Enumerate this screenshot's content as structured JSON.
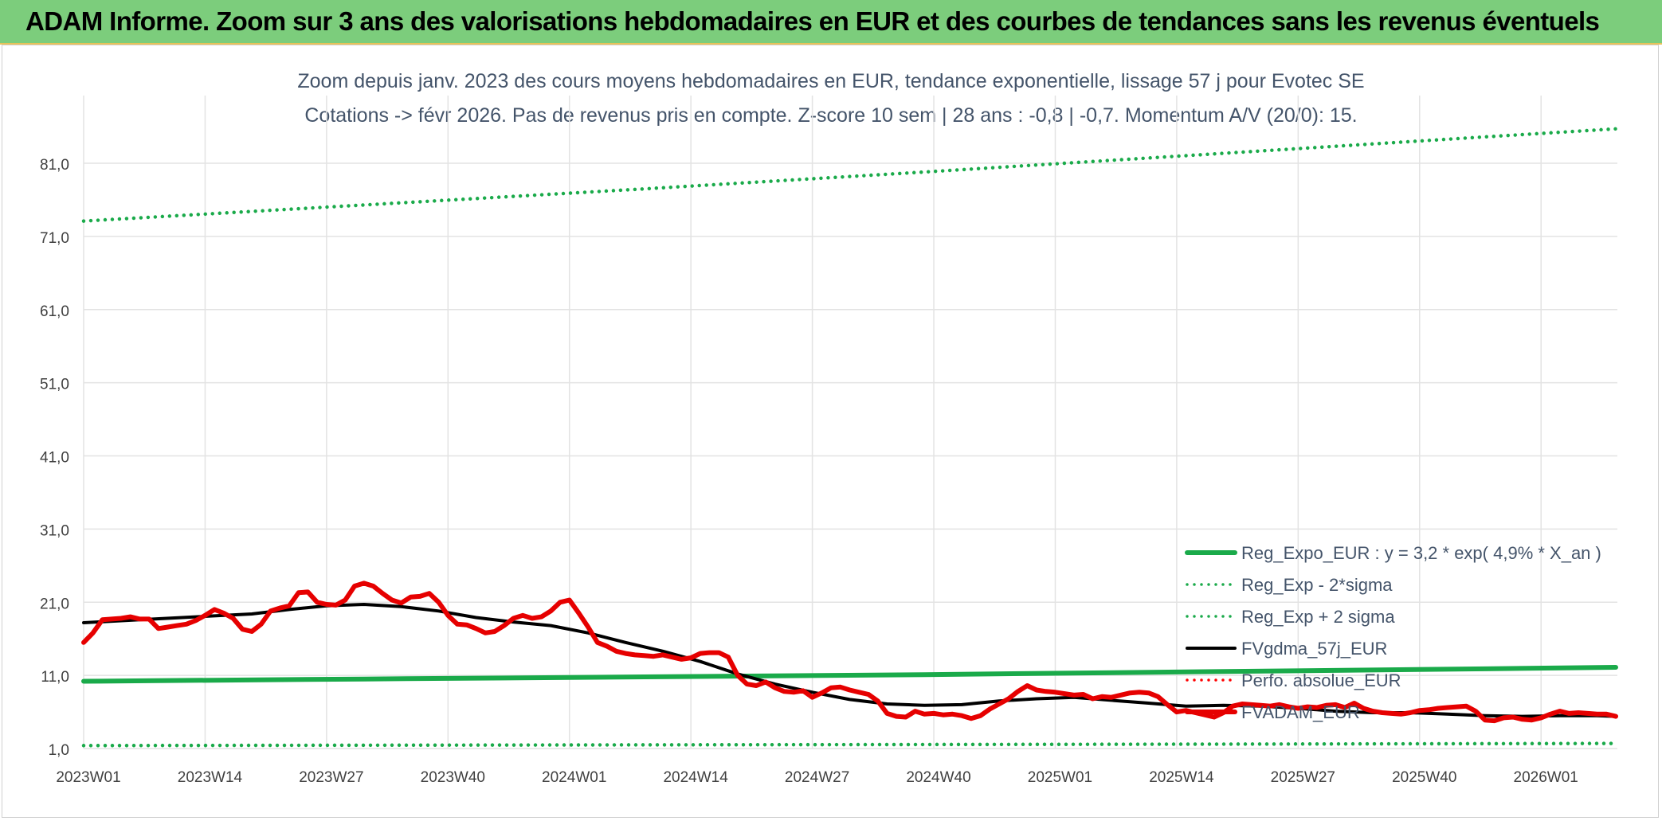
{
  "banner": {
    "title": "ADAM Informe. Zoom sur 3 ans des valorisations hebdomadaires en EUR et des courbes de tendances sans les revenus éventuels"
  },
  "chart_data": {
    "type": "line",
    "title": "Zoom depuis janv. 2023 des cours moyens hebdomadaires en EUR, tendance exponentielle, lissage 57 j pour Evotec SE",
    "subtitle": "Cotations -> févr 2026. Pas de revenus pris en compte. Z-score 10 sem | 28 ans : -0,8 | -0,7. Momentum A/V (20/0): 15.",
    "xlabel": "",
    "ylabel": "",
    "ylim": [
      1,
      88
    ],
    "y_ticks": [
      1,
      11,
      21,
      31,
      41,
      51,
      61,
      71,
      81
    ],
    "y_tick_labels": [
      "1,0",
      "11,0",
      "21,0",
      "31,0",
      "41,0",
      "51,0",
      "61,0",
      "71,0",
      "81,0"
    ],
    "x_tick_labels": [
      "2023W01",
      "2023W14",
      "2023W27",
      "2023W40",
      "2024W01",
      "2024W14",
      "2024W27",
      "2024W40",
      "2025W01",
      "2025W14",
      "2025W27",
      "2025W40",
      "2026W01"
    ],
    "x_tick_weeks": [
      0,
      13,
      26,
      39,
      52,
      65,
      78,
      91,
      104,
      117,
      130,
      143,
      156
    ],
    "x_max_week": 164,
    "legend_position": "bottom-right",
    "series": [
      {
        "name": "Reg_Expo_EUR : y = 3,2 * exp( 4,9% *  X_an )",
        "color": "#1aaa4a",
        "style": "solid-thick",
        "points": [
          [
            0,
            10.2
          ],
          [
            30,
            10.5
          ],
          [
            60,
            10.8
          ],
          [
            90,
            11.1
          ],
          [
            120,
            11.5
          ],
          [
            150,
            11.9
          ],
          [
            164,
            12.1
          ]
        ]
      },
      {
        "name": "Reg_Exp - 2*sigma",
        "color": "#1aaa4a",
        "style": "dotted",
        "points": [
          [
            0,
            1.4
          ],
          [
            60,
            1.5
          ],
          [
            120,
            1.6
          ],
          [
            164,
            1.7
          ]
        ]
      },
      {
        "name": "Reg_Exp + 2 sigma",
        "color": "#1aaa4a",
        "style": "dotted",
        "points": [
          [
            0,
            73.1
          ],
          [
            30,
            75.3
          ],
          [
            60,
            77.5
          ],
          [
            90,
            79.8
          ],
          [
            120,
            82.2
          ],
          [
            150,
            84.6
          ],
          [
            164,
            85.7
          ]
        ]
      },
      {
        "name": "FVgdma_57j_EUR",
        "color": "#000000",
        "style": "solid",
        "points": [
          [
            0,
            18.2
          ],
          [
            6,
            18.6
          ],
          [
            12,
            19.0
          ],
          [
            18,
            19.4
          ],
          [
            22,
            20.0
          ],
          [
            26,
            20.5
          ],
          [
            30,
            20.7
          ],
          [
            34,
            20.4
          ],
          [
            38,
            19.8
          ],
          [
            42,
            18.9
          ],
          [
            46,
            18.3
          ],
          [
            50,
            17.8
          ],
          [
            54,
            16.8
          ],
          [
            58,
            15.5
          ],
          [
            62,
            14.3
          ],
          [
            66,
            12.9
          ],
          [
            70,
            11.2
          ],
          [
            74,
            9.8
          ],
          [
            78,
            8.7
          ],
          [
            82,
            7.7
          ],
          [
            86,
            7.1
          ],
          [
            90,
            6.9
          ],
          [
            94,
            7.0
          ],
          [
            98,
            7.5
          ],
          [
            102,
            7.8
          ],
          [
            106,
            8.0
          ],
          [
            110,
            7.6
          ],
          [
            114,
            7.2
          ],
          [
            118,
            6.8
          ],
          [
            122,
            6.9
          ],
          [
            126,
            6.8
          ],
          [
            130,
            6.5
          ],
          [
            134,
            6.1
          ],
          [
            138,
            5.9
          ],
          [
            142,
            5.9
          ],
          [
            146,
            5.7
          ],
          [
            150,
            5.5
          ],
          [
            154,
            5.4
          ],
          [
            158,
            5.5
          ],
          [
            162,
            5.5
          ],
          [
            164,
            5.4
          ]
        ]
      },
      {
        "name": "Perfo. absolue_EUR",
        "color": "#ff0000",
        "style": "dotted",
        "points": []
      },
      {
        "name": "FVADAM_EUR",
        "color": "#e60000",
        "style": "solid-thick",
        "points": [
          [
            0,
            15.5
          ],
          [
            1,
            16.8
          ],
          [
            2,
            18.6
          ],
          [
            3,
            18.7
          ],
          [
            4,
            18.8
          ],
          [
            5,
            19.0
          ],
          [
            6,
            18.7
          ],
          [
            7,
            18.7
          ],
          [
            8,
            17.4
          ],
          [
            9,
            17.6
          ],
          [
            10,
            17.8
          ],
          [
            11,
            18.0
          ],
          [
            12,
            18.5
          ],
          [
            13,
            19.2
          ],
          [
            14,
            20.0
          ],
          [
            15,
            19.5
          ],
          [
            16,
            18.8
          ],
          [
            17,
            17.3
          ],
          [
            18,
            17.0
          ],
          [
            19,
            18.0
          ],
          [
            20,
            19.8
          ],
          [
            21,
            20.2
          ],
          [
            22,
            20.5
          ],
          [
            23,
            22.3
          ],
          [
            24,
            22.4
          ],
          [
            25,
            21.0
          ],
          [
            26,
            20.7
          ],
          [
            27,
            20.6
          ],
          [
            28,
            21.3
          ],
          [
            29,
            23.2
          ],
          [
            30,
            23.6
          ],
          [
            31,
            23.2
          ],
          [
            32,
            22.2
          ],
          [
            33,
            21.3
          ],
          [
            34,
            20.9
          ],
          [
            35,
            21.7
          ],
          [
            36,
            21.8
          ],
          [
            37,
            22.2
          ],
          [
            38,
            21.0
          ],
          [
            39,
            19.2
          ],
          [
            40,
            18.0
          ],
          [
            41,
            17.9
          ],
          [
            42,
            17.4
          ],
          [
            43,
            16.8
          ],
          [
            44,
            17.0
          ],
          [
            45,
            17.8
          ],
          [
            46,
            18.8
          ],
          [
            47,
            19.2
          ],
          [
            48,
            18.8
          ],
          [
            49,
            19.0
          ],
          [
            50,
            19.8
          ],
          [
            51,
            21.0
          ],
          [
            52,
            21.3
          ],
          [
            53,
            19.5
          ],
          [
            54,
            17.6
          ],
          [
            55,
            15.5
          ],
          [
            56,
            15.0
          ],
          [
            57,
            14.3
          ],
          [
            58,
            14.0
          ],
          [
            59,
            13.8
          ],
          [
            60,
            13.7
          ],
          [
            61,
            13.6
          ],
          [
            62,
            13.8
          ],
          [
            63,
            13.5
          ],
          [
            64,
            13.2
          ],
          [
            65,
            13.4
          ],
          [
            66,
            14.0
          ],
          [
            67,
            14.1
          ],
          [
            68,
            14.1
          ],
          [
            69,
            13.5
          ],
          [
            70,
            11.0
          ],
          [
            71,
            9.8
          ],
          [
            72,
            9.6
          ],
          [
            73,
            10.1
          ],
          [
            74,
            9.3
          ],
          [
            75,
            8.8
          ],
          [
            76,
            8.7
          ],
          [
            77,
            8.9
          ],
          [
            78,
            8.0
          ],
          [
            79,
            8.6
          ],
          [
            80,
            9.3
          ],
          [
            81,
            9.4
          ],
          [
            82,
            9.0
          ],
          [
            83,
            8.7
          ],
          [
            84,
            8.4
          ],
          [
            85,
            7.5
          ],
          [
            86,
            5.8
          ],
          [
            87,
            5.4
          ],
          [
            88,
            5.3
          ],
          [
            89,
            6.1
          ],
          [
            90,
            5.7
          ],
          [
            91,
            5.8
          ],
          [
            92,
            5.6
          ],
          [
            93,
            5.7
          ],
          [
            94,
            5.5
          ],
          [
            95,
            5.1
          ],
          [
            96,
            5.5
          ],
          [
            97,
            6.4
          ],
          [
            98,
            7.1
          ],
          [
            99,
            7.8
          ],
          [
            100,
            8.8
          ],
          [
            101,
            9.6
          ],
          [
            102,
            9.0
          ],
          [
            103,
            8.8
          ],
          [
            104,
            8.7
          ],
          [
            105,
            8.5
          ],
          [
            106,
            8.3
          ],
          [
            107,
            8.4
          ],
          [
            108,
            7.8
          ],
          [
            109,
            8.1
          ],
          [
            110,
            8.0
          ],
          [
            111,
            8.3
          ],
          [
            112,
            8.6
          ],
          [
            113,
            8.7
          ],
          [
            114,
            8.6
          ],
          [
            115,
            8.1
          ],
          [
            116,
            7.0
          ],
          [
            117,
            6.0
          ],
          [
            118,
            6.2
          ],
          [
            119,
            5.9
          ],
          [
            120,
            5.6
          ],
          [
            121,
            5.3
          ],
          [
            122,
            5.9
          ],
          [
            123,
            6.8
          ],
          [
            124,
            7.1
          ],
          [
            125,
            7.0
          ],
          [
            126,
            6.9
          ],
          [
            127,
            6.8
          ],
          [
            128,
            7.0
          ],
          [
            129,
            6.7
          ],
          [
            130,
            6.5
          ],
          [
            131,
            6.7
          ],
          [
            132,
            6.6
          ],
          [
            133,
            6.9
          ],
          [
            134,
            7.0
          ],
          [
            135,
            6.6
          ],
          [
            136,
            7.2
          ],
          [
            137,
            6.5
          ],
          [
            138,
            6.1
          ],
          [
            139,
            5.9
          ],
          [
            140,
            5.8
          ],
          [
            141,
            5.7
          ],
          [
            142,
            5.9
          ],
          [
            143,
            6.2
          ],
          [
            144,
            6.3
          ],
          [
            145,
            6.5
          ],
          [
            146,
            6.6
          ],
          [
            147,
            6.7
          ],
          [
            148,
            6.8
          ],
          [
            149,
            6.1
          ],
          [
            150,
            4.9
          ],
          [
            151,
            4.8
          ],
          [
            152,
            5.2
          ],
          [
            153,
            5.3
          ],
          [
            154,
            5.0
          ],
          [
            155,
            4.9
          ],
          [
            156,
            5.2
          ],
          [
            157,
            5.7
          ],
          [
            158,
            6.1
          ],
          [
            159,
            5.8
          ],
          [
            160,
            5.9
          ],
          [
            161,
            5.8
          ],
          [
            162,
            5.7
          ],
          [
            163,
            5.7
          ],
          [
            164,
            5.4
          ]
        ]
      }
    ]
  }
}
